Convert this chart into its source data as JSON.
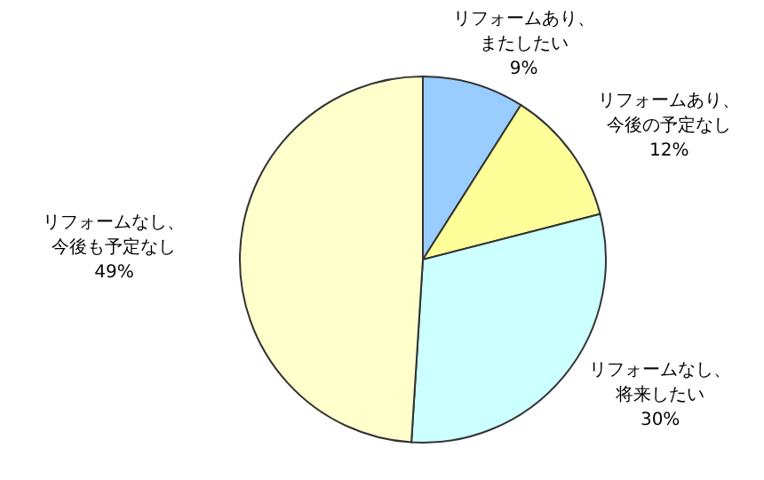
{
  "chart_data": {
    "type": "pie",
    "categories": [
      "リフォームあり、またしたい",
      "リフォームあり、今後の予定なし",
      "リフォームなし、将来したい",
      "リフォームなし、今後も予定なし"
    ],
    "values": [
      9,
      12,
      30,
      49
    ],
    "value_labels": [
      "9%",
      "12%",
      "30%",
      "49%"
    ],
    "colors": [
      "#99ccff",
      "#ffff99",
      "#ccffff",
      "#ffffcc"
    ]
  }
}
